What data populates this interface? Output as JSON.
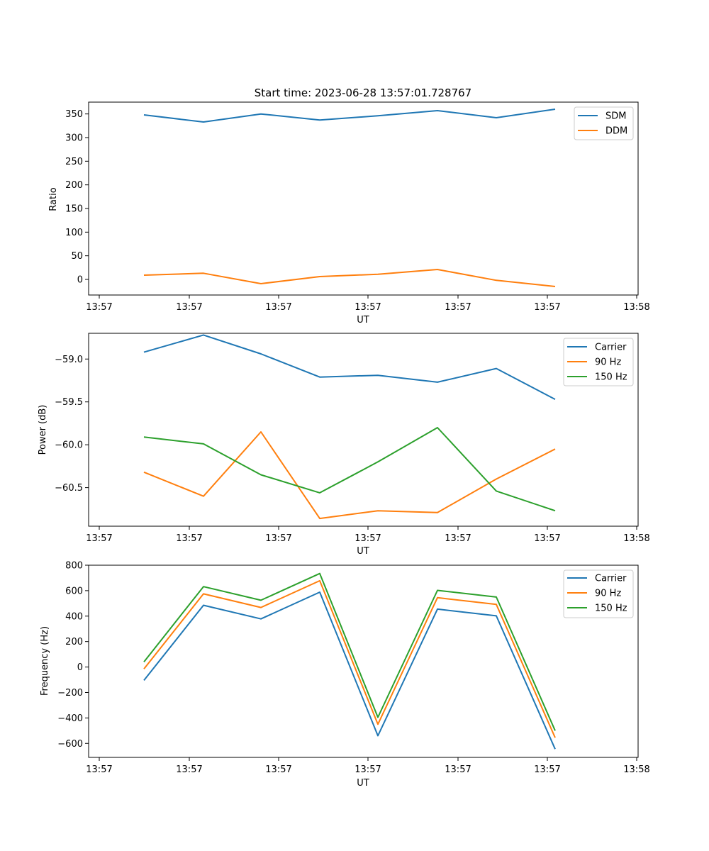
{
  "chart_data": [
    {
      "type": "line",
      "title": "Start time: 2023-06-28 13:57:01.728767",
      "xlabel": "UT",
      "ylabel": "Ratio",
      "x_tick_labels": [
        "13:57",
        "13:57",
        "13:57",
        "13:57",
        "13:57",
        "13:57",
        "13:58"
      ],
      "ylim": [
        -33,
        375
      ],
      "y_ticks": [
        0,
        50,
        100,
        150,
        200,
        250,
        300,
        350
      ],
      "legend_position": "upper-right",
      "grid": false,
      "series": [
        {
          "name": "SDM",
          "color": "#1f77b4",
          "values": [
            348,
            333,
            350,
            337,
            346,
            357,
            342,
            360
          ]
        },
        {
          "name": "DDM",
          "color": "#ff7f0e",
          "values": [
            9,
            13,
            -9,
            6,
            11,
            21,
            -2,
            -15
          ]
        }
      ]
    },
    {
      "type": "line",
      "title": "",
      "xlabel": "UT",
      "ylabel": "Power (dB)",
      "x_tick_labels": [
        "13:57",
        "13:57",
        "13:57",
        "13:57",
        "13:57",
        "13:57",
        "13:58"
      ],
      "ylim": [
        -60.95,
        -58.7
      ],
      "y_ticks": [
        -59.0,
        -59.5,
        -60.0,
        -60.5
      ],
      "y_tick_labels": [
        "−59.0",
        "−59.5",
        "−60.0",
        "−60.5"
      ],
      "legend_position": "upper-right",
      "grid": false,
      "series": [
        {
          "name": "Carrier",
          "color": "#1f77b4",
          "values": [
            -58.92,
            -58.72,
            -58.94,
            -59.21,
            -59.19,
            -59.27,
            -59.11,
            -59.47
          ]
        },
        {
          "name": "90 Hz",
          "color": "#ff7f0e",
          "values": [
            -60.32,
            -60.6,
            -59.85,
            -60.86,
            -60.77,
            -60.79,
            -60.4,
            -60.05
          ]
        },
        {
          "name": "150 Hz",
          "color": "#2ca02c",
          "values": [
            -59.91,
            -59.99,
            -60.35,
            -60.56,
            -60.2,
            -59.8,
            -60.54,
            -60.77
          ]
        }
      ]
    },
    {
      "type": "line",
      "title": "",
      "xlabel": "UT",
      "ylabel": "Frequency (Hz)",
      "x_tick_labels": [
        "13:57",
        "13:57",
        "13:57",
        "13:57",
        "13:57",
        "13:57",
        "13:58"
      ],
      "ylim": [
        -710,
        800
      ],
      "y_ticks": [
        800,
        600,
        400,
        200,
        0,
        -200,
        -400,
        -600
      ],
      "y_tick_labels": [
        "800",
        "600",
        "400",
        "200",
        "0",
        "−200",
        "−400",
        "−600"
      ],
      "legend_position": "upper-right",
      "grid": false,
      "series": [
        {
          "name": "Carrier",
          "color": "#1f77b4",
          "values": [
            -105,
            485,
            378,
            588,
            -540,
            455,
            402,
            -645
          ]
        },
        {
          "name": "90 Hz",
          "color": "#ff7f0e",
          "values": [
            -15,
            575,
            468,
            678,
            -450,
            545,
            492,
            -555
          ]
        },
        {
          "name": "150 Hz",
          "color": "#2ca02c",
          "values": [
            40,
            632,
            525,
            735,
            -395,
            602,
            550,
            -500
          ]
        }
      ]
    }
  ]
}
